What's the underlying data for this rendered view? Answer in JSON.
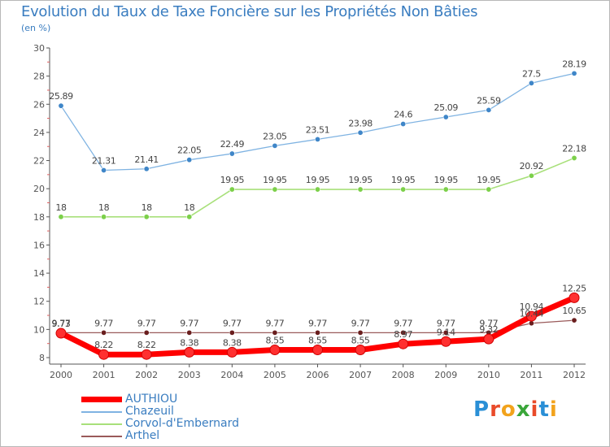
{
  "header": {
    "title": "Evolution du Taux de Taxe Foncière sur les Propriétés Non Bâties",
    "unit": "(en %)"
  },
  "logo": {
    "text": "Proxiti",
    "letter_colors": [
      "#2a8fd6",
      "#e94b2a",
      "#f2a31c",
      "#3aa63a",
      "#e94b2a",
      "#2a8fd6",
      "#f2a31c"
    ]
  },
  "chart_data": {
    "type": "line",
    "x": [
      "2000",
      "2001",
      "2002",
      "2003",
      "2004",
      "2005",
      "2006",
      "2007",
      "2008",
      "2009",
      "2010",
      "2011",
      "2012"
    ],
    "ylim": [
      8,
      30
    ],
    "yticks": [
      8,
      10,
      12,
      14,
      16,
      18,
      20,
      22,
      24,
      26,
      28,
      30
    ],
    "grid": false,
    "legend_position": "bottom-left",
    "series": [
      {
        "name": "AUTHIOU",
        "color": "#ff0000",
        "values": [
          9.73,
          8.22,
          8.22,
          8.38,
          8.38,
          8.55,
          8.55,
          8.55,
          8.97,
          9.14,
          9.32,
          10.94,
          12.25
        ],
        "labels": [
          "9.73",
          "8.22",
          "8.22",
          "8.38",
          "8.38",
          "8.55",
          "8.55",
          "8.55",
          "8.97",
          "9.14",
          "9.32",
          "10.94",
          "12.25"
        ]
      },
      {
        "name": "Chazeuil",
        "color": "#7fb3e2",
        "values": [
          25.89,
          21.31,
          21.41,
          22.05,
          22.49,
          23.05,
          23.51,
          23.98,
          24.6,
          25.09,
          25.59,
          27.5,
          28.19
        ],
        "labels": [
          "25.89",
          "21.31",
          "21.41",
          "22.05",
          "22.49",
          "23.05",
          "23.51",
          "23.98",
          "24.6",
          "25.09",
          "25.59",
          "27.5",
          "28.19"
        ]
      },
      {
        "name": "Corvol-d'Embernard",
        "color": "#a8e07a",
        "values": [
          18,
          18,
          18,
          18,
          19.95,
          19.95,
          19.95,
          19.95,
          19.95,
          19.95,
          19.95,
          20.92,
          22.18
        ],
        "labels": [
          "18",
          "18",
          "18",
          "18",
          "19.95",
          "19.95",
          "19.95",
          "19.95",
          "19.95",
          "19.95",
          "19.95",
          "20.92",
          "22.18"
        ]
      },
      {
        "name": "Arthel",
        "color": "#9a5a5a",
        "values": [
          9.77,
          9.77,
          9.77,
          9.77,
          9.77,
          9.77,
          9.77,
          9.77,
          9.77,
          9.77,
          9.77,
          10.44,
          10.65
        ],
        "labels": [
          "9.77",
          "9.77",
          "9.77",
          "9.77",
          "9.77",
          "9.77",
          "9.77",
          "9.77",
          "9.77",
          "9.77",
          "9.77",
          "10.44",
          "10.65"
        ]
      }
    ]
  }
}
